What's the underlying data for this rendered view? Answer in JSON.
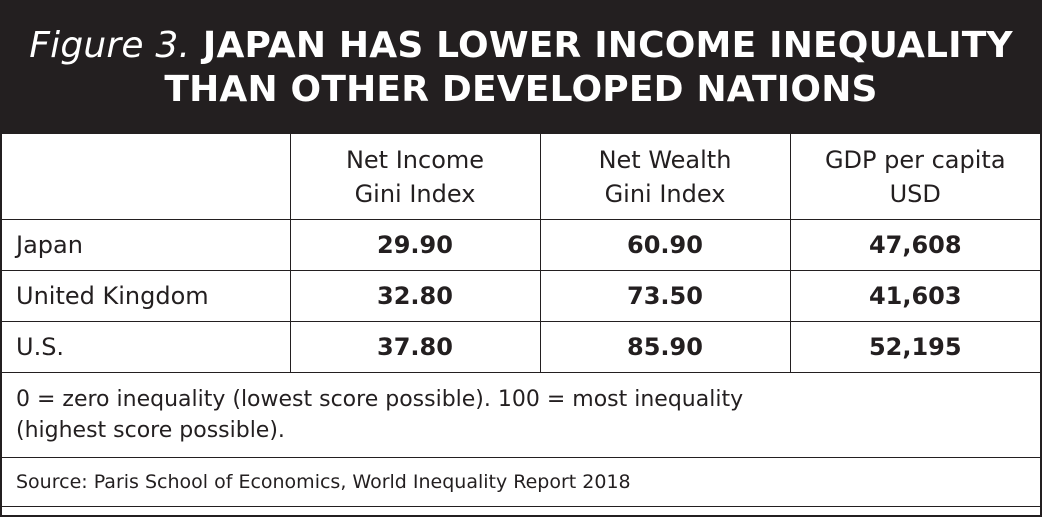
{
  "header": {
    "figure_label": "Figure 3.",
    "title_line1": "JAPAN HAS LOWER INCOME INEQUALITY",
    "title_line2": "THAN OTHER DEVELOPED NATIONS",
    "background_color": "#231f20",
    "text_color": "#ffffff"
  },
  "chart_data": {
    "type": "table",
    "columns": [
      {
        "line1": "",
        "line2": ""
      },
      {
        "line1": "Net Income",
        "line2": "Gini Index"
      },
      {
        "line1": "Net Wealth",
        "line2": "Gini Index"
      },
      {
        "line1": "GDP per capita",
        "line2": "USD"
      }
    ],
    "rows": [
      {
        "country": "Japan",
        "net_income_gini": "29.90",
        "net_wealth_gini": "60.90",
        "gdp_per_capita": "47,608"
      },
      {
        "country": "United Kingdom",
        "net_income_gini": "32.80",
        "net_wealth_gini": "73.50",
        "gdp_per_capita": "41,603"
      },
      {
        "country": "U.S.",
        "net_income_gini": "37.80",
        "net_wealth_gini": "85.90",
        "gdp_per_capita": "52,195"
      }
    ],
    "note_line1": "0 = zero inequality (lowest score possible). 100 = most inequality",
    "note_line2": "(highest score possible).",
    "source": "Source: Paris School of Economics, World Inequality Report 2018"
  }
}
